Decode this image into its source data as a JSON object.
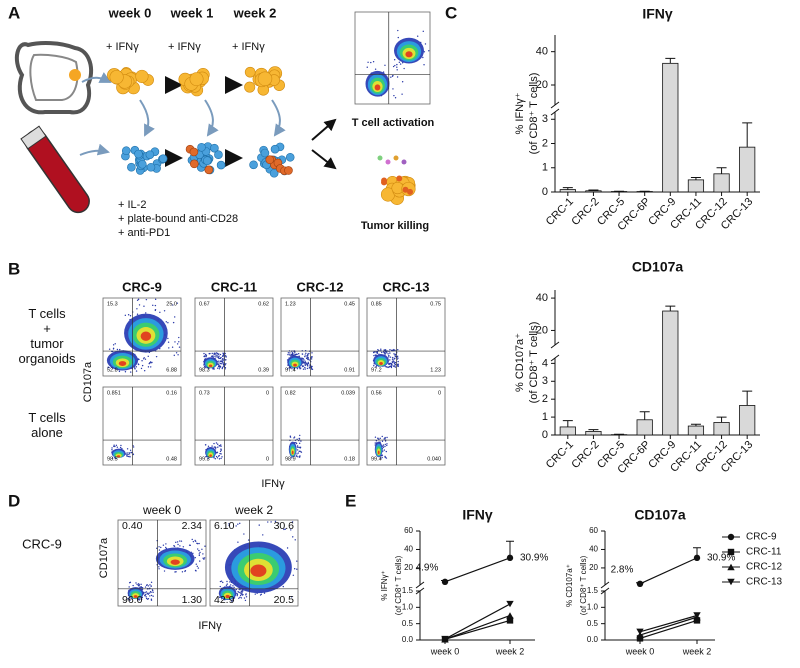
{
  "panel_labels": [
    "A",
    "B",
    "C",
    "D",
    "E"
  ],
  "panel_a": {
    "weeks": [
      "week 0",
      "week 1",
      "week 2"
    ],
    "treatment": "+ IFNγ",
    "culture": [
      "+ IL-2",
      "+ plate-bound anti-CD28",
      "+ anti-PD1"
    ],
    "outcomes": [
      "T cell activation",
      "Tumor killing"
    ]
  },
  "panel_b": {
    "columns": [
      "CRC-9",
      "CRC-11",
      "CRC-12",
      "CRC-13"
    ],
    "rows": [
      {
        "label": [
          "T cells",
          "+",
          "tumor",
          "organoids"
        ],
        "quadrants": [
          [
            "15.3",
            "25.0",
            "52.8",
            "6.88"
          ],
          [
            "0.67",
            "0.62",
            "98.3",
            "0.39"
          ],
          [
            "1.23",
            "0.45",
            "97.4",
            "0.91"
          ],
          [
            "0.85",
            "0.75",
            "97.2",
            "1.23"
          ]
        ]
      },
      {
        "label": [
          "T cells",
          "alone"
        ],
        "quadrants": [
          [
            "0.851",
            "0.16",
            "98.5",
            "0.48"
          ],
          [
            "0.73",
            "0",
            "99.3",
            "0"
          ],
          [
            "0.82",
            "0.039",
            "98.9",
            "0.18"
          ],
          [
            "0.56",
            "0",
            "99.4",
            "0.040"
          ]
        ]
      }
    ],
    "y_label": "CD107a",
    "x_label": "IFNγ"
  },
  "panel_d": {
    "sample": "CRC-9",
    "plots": [
      {
        "title": "week 0",
        "quadrants": [
          "0.40",
          "2.34",
          "96.0",
          "1.30"
        ]
      },
      {
        "title": "week 2",
        "quadrants": [
          "6.10",
          "30.6",
          "42.9",
          "20.5"
        ]
      }
    ],
    "y_label": "CD107a",
    "x_label": "IFNγ"
  },
  "chart_data": [
    {
      "type": "bar",
      "title": "IFNγ",
      "ylabel": [
        "% IFNγ⁺",
        "(of CD8⁺ T cells)"
      ],
      "categories": [
        "CRC-1",
        "CRC-2",
        "CRC-5",
        "CRC-6P",
        "CRC-9",
        "CRC-11",
        "CRC-12",
        "CRC-13"
      ],
      "values": [
        0.1,
        0.05,
        0.02,
        0.02,
        33,
        0.5,
        0.75,
        1.85
      ],
      "errors": [
        0.08,
        0.03,
        0.01,
        0.01,
        3,
        0.1,
        0.25,
        1.0
      ],
      "color": "#d9d9d9",
      "ylim": [
        0,
        50
      ],
      "ybreak": [
        3.3,
        8
      ],
      "yticks": [
        0,
        1,
        2,
        3,
        20,
        40
      ]
    },
    {
      "type": "bar",
      "title": "CD107a",
      "ylabel": [
        "% CD107a⁺",
        "(of CD8⁺ T cells)"
      ],
      "categories": [
        "CRC-1",
        "CRC-2",
        "CRC-5",
        "CRC-6P",
        "CRC-9",
        "CRC-11",
        "CRC-12",
        "CRC-13"
      ],
      "values": [
        0.45,
        0.2,
        0.02,
        0.85,
        32,
        0.5,
        0.7,
        1.65
      ],
      "errors": [
        0.35,
        0.1,
        0.02,
        0.45,
        3,
        0.1,
        0.3,
        0.8
      ],
      "color": "#d9d9d9",
      "ylim": [
        0,
        45
      ],
      "ybreak": [
        4.3,
        11
      ],
      "yticks": [
        0,
        1,
        2,
        3,
        4,
        20,
        40
      ]
    },
    {
      "type": "line",
      "title": "IFNγ",
      "ylabel": [
        "% IFNγ⁺",
        "(of CD8⁺ T cells)"
      ],
      "categories": [
        "week 0",
        "week 2"
      ],
      "ylim": [
        0,
        60
      ],
      "ybreak": [
        1.5,
        1.5
      ],
      "yticks": [
        {
          "value": 0,
          "label": "0.0"
        },
        0.5,
        {
          "value": 1,
          "label": "1.0"
        },
        1.5,
        20,
        40,
        60
      ],
      "series": [
        {
          "name": "CRC-9",
          "marker": "circle",
          "color": "#111111",
          "values": [
            4.9,
            30.9
          ],
          "errors": [
            1.5,
            18
          ],
          "value_labels": [
            "4.9%",
            "30.9%"
          ]
        },
        {
          "name": "CRC-11",
          "marker": "square",
          "color": "#111111",
          "values": [
            0.02,
            0.6
          ]
        },
        {
          "name": "CRC-12",
          "marker": "triangle-up",
          "color": "#111111",
          "values": [
            0.02,
            0.75
          ]
        },
        {
          "name": "CRC-13",
          "marker": "triangle-down",
          "color": "#111111",
          "values": [
            0.03,
            1.1
          ]
        }
      ]
    },
    {
      "type": "line",
      "title": "CD107a",
      "ylabel": [
        "% CD107a⁺",
        "(of CD8⁺ T cells)"
      ],
      "categories": [
        "week 0",
        "week 2"
      ],
      "ylim": [
        0,
        60
      ],
      "ybreak": [
        1.5,
        1.5
      ],
      "yticks": [
        {
          "value": 0,
          "label": "0.0"
        },
        0.5,
        {
          "value": 1,
          "label": "1.0"
        },
        1.5,
        20,
        40,
        60
      ],
      "legend": "right",
      "series": [
        {
          "name": "CRC-9",
          "marker": "circle",
          "color": "#111111",
          "values": [
            2.8,
            30.9
          ],
          "errors": [
            1.2,
            11
          ],
          "value_labels": [
            "2.8%",
            "30.9%"
          ]
        },
        {
          "name": "CRC-11",
          "marker": "square",
          "color": "#111111",
          "values": [
            0.05,
            0.6
          ]
        },
        {
          "name": "CRC-12",
          "marker": "triangle-up",
          "color": "#111111",
          "values": [
            0.15,
            0.7
          ]
        },
        {
          "name": "CRC-13",
          "marker": "triangle-down",
          "color": "#111111",
          "values": [
            0.25,
            0.75
          ]
        }
      ]
    }
  ]
}
